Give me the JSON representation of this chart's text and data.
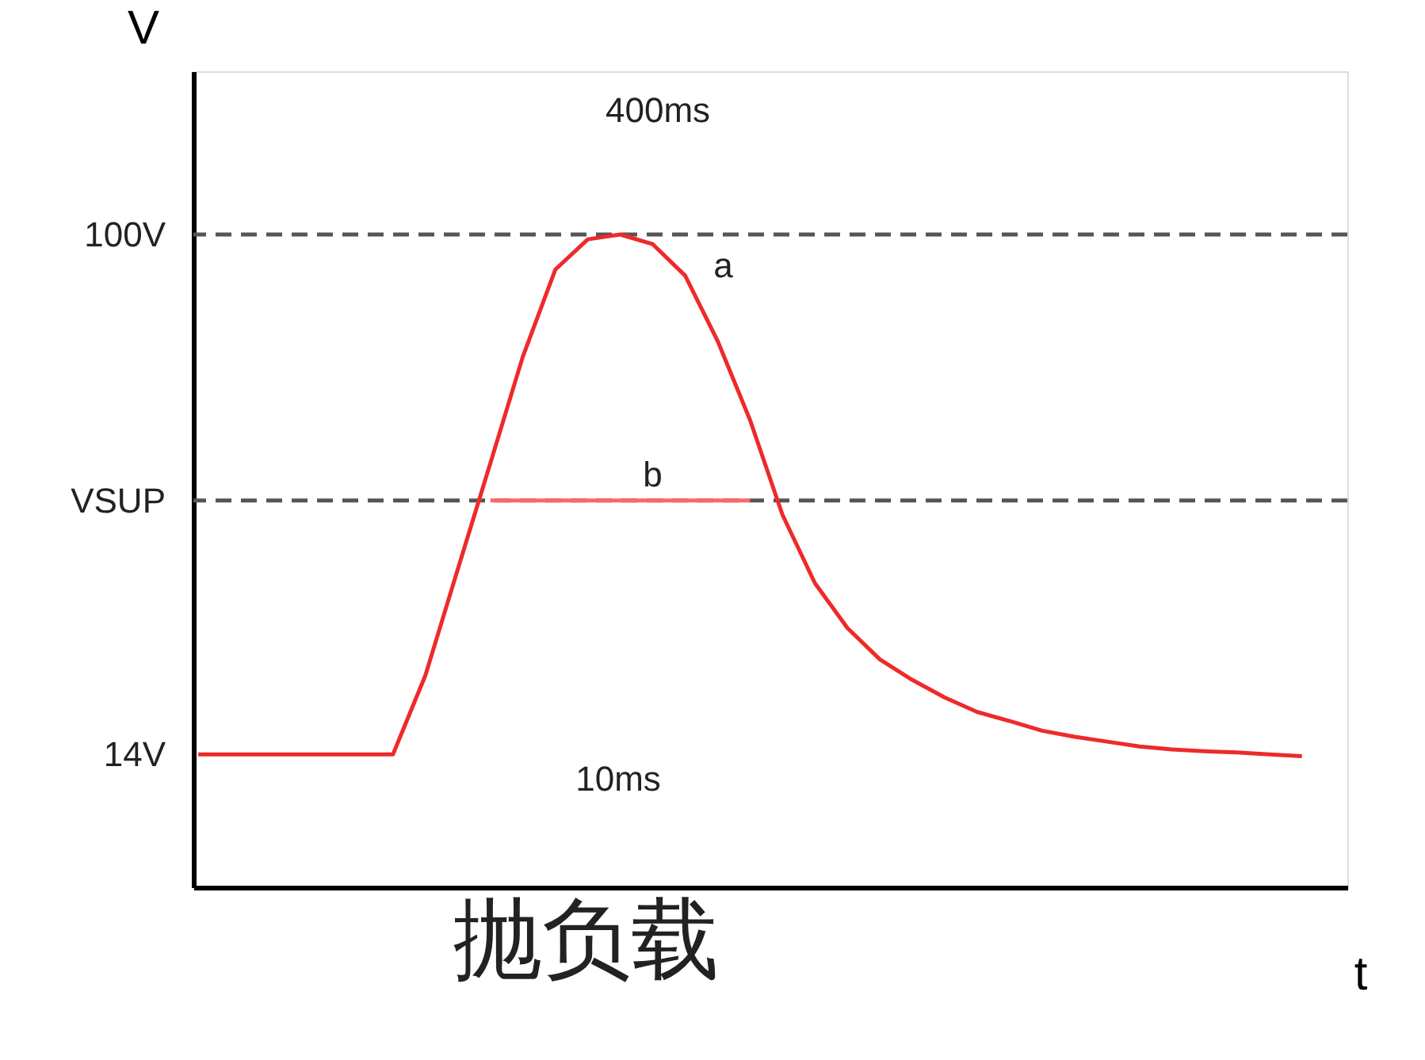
{
  "chart_data": {
    "type": "line",
    "xlabel": "t",
    "ylabel": "V",
    "categories": [
      null,
      null,
      null,
      null,
      null,
      null,
      null,
      null,
      null,
      null,
      null,
      null,
      null,
      null,
      null,
      null,
      null,
      null,
      null,
      null,
      null,
      null,
      null,
      null,
      null,
      null,
      null,
      null,
      null,
      null,
      null,
      null,
      null,
      null,
      null
    ],
    "series": [
      {
        "name": "a",
        "color": "#ee2a2a",
        "values": [
          14,
          14,
          14,
          14,
          14,
          14,
          14,
          27.1,
          44.7,
          62.2,
          79.8,
          94.2,
          99.2,
          100,
          98.4,
          93.2,
          82.4,
          69.3,
          53.6,
          42.3,
          34.9,
          29.7,
          26.3,
          23.4,
          21.0,
          19.5,
          17.9,
          16.9,
          16.1,
          15.3,
          14.8,
          14.5,
          14.3,
          14,
          13.7
        ]
      },
      {
        "name": "b",
        "color": "#ff6666",
        "values": [
          null,
          null,
          null,
          null,
          null,
          null,
          null,
          null,
          null,
          56,
          56,
          56,
          56,
          56,
          56,
          56,
          56,
          56,
          null,
          null,
          null,
          null,
          null,
          null,
          null,
          null,
          null,
          null,
          null,
          null,
          null,
          null,
          null,
          null,
          null
        ]
      }
    ],
    "ylim": [
      -8,
      127
    ],
    "yticks": [
      {
        "value": 14,
        "label": "14V"
      },
      {
        "value": 56,
        "label": "VSUP"
      },
      {
        "value": 100,
        "label": "100V"
      }
    ],
    "tick_labels": "y",
    "grid": false,
    "legend": false,
    "marker": "none",
    "line_style": "solid",
    "ref_lines": [
      {
        "axis": "y",
        "value": 100,
        "color": "#555555",
        "line_style": "dashed"
      },
      {
        "axis": "y",
        "value": 56,
        "color": "#555555",
        "line_style": "dashed"
      }
    ],
    "annotations": [
      "400ms",
      "10ms",
      "抛负载"
    ]
  }
}
